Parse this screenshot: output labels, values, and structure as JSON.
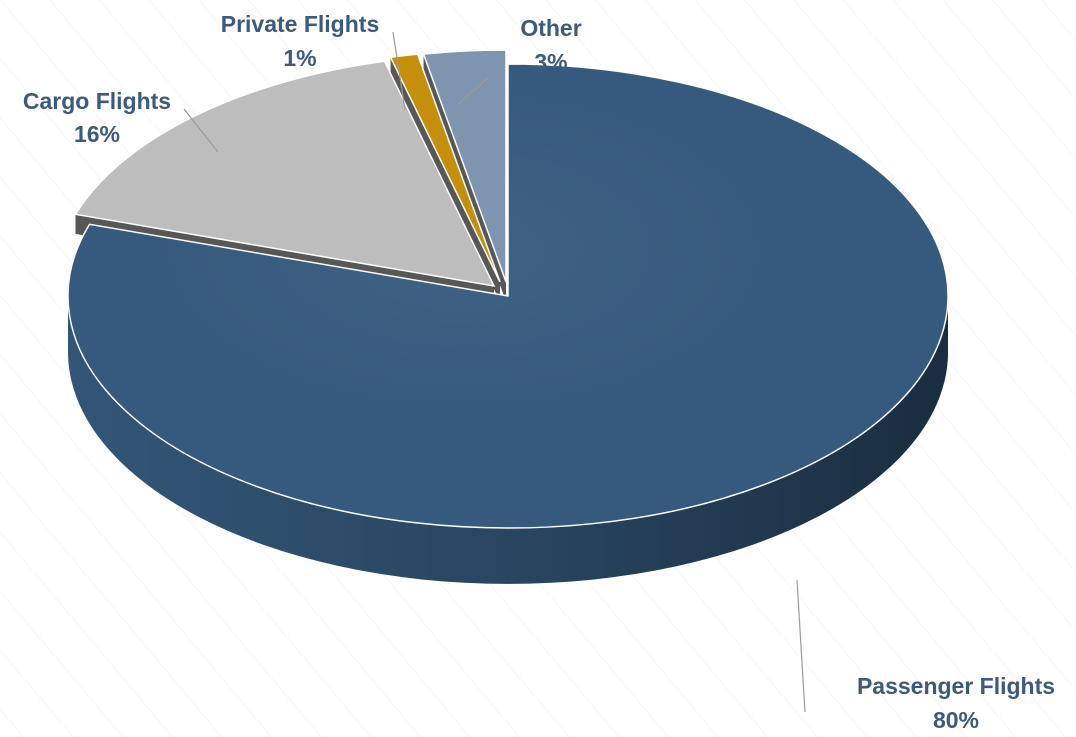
{
  "chart_data": {
    "type": "pie",
    "style": "3d-exploded",
    "title": "",
    "slices": [
      {
        "label": "Passenger Flights",
        "value": 80,
        "value_label": "80%",
        "color": "#355A7E"
      },
      {
        "label": "Cargo Flights",
        "value": 16,
        "value_label": "16%",
        "color": "#BDBDBD"
      },
      {
        "label": "Private Flights",
        "value": 1,
        "value_label": "1%",
        "color": "#C58F0B"
      },
      {
        "label": "Other",
        "value": 3,
        "value_label": "3%",
        "color": "#7F94AE"
      }
    ],
    "label_color": "#3B5A7E",
    "background": "#FFFFFF"
  }
}
